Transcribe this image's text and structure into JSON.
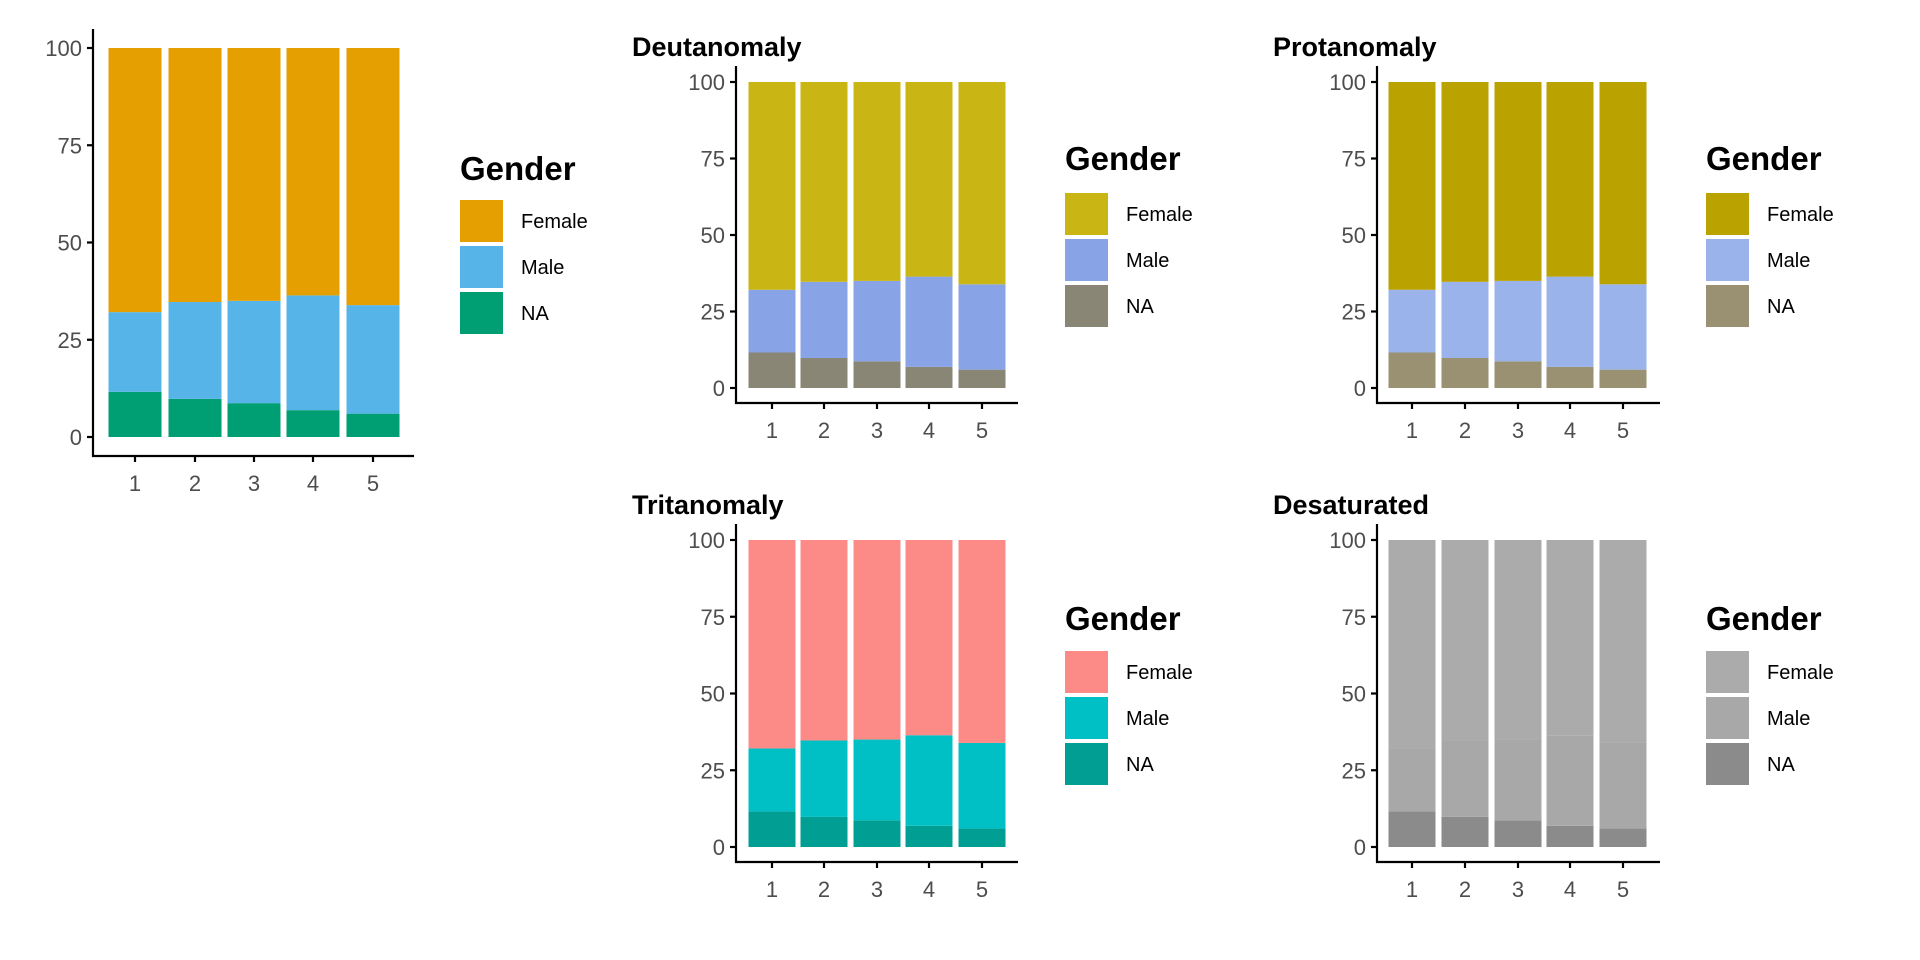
{
  "chart_data": [
    {
      "type": "bar",
      "stacked": true,
      "title": "",
      "xlabel": "",
      "ylabel": "",
      "categories": [
        "1",
        "2",
        "3",
        "4",
        "5"
      ],
      "yticks": [
        "0",
        "25",
        "50",
        "75",
        "100"
      ],
      "ylim": [
        0,
        100
      ],
      "grid": false,
      "legend": {
        "title": "Gender",
        "position": "right",
        "entries": [
          "Female",
          "Male",
          "NA"
        ]
      },
      "series": [
        {
          "name": "NA",
          "color": "#009E73",
          "values": [
            11.6,
            9.8,
            8.7,
            6.9,
            6.0
          ]
        },
        {
          "name": "Male",
          "color": "#56B4E9",
          "values": [
            20.5,
            24.9,
            26.3,
            29.5,
            27.9
          ]
        },
        {
          "name": "Female",
          "color": "#E69F00",
          "values": [
            67.9,
            65.3,
            65.0,
            63.6,
            66.1
          ]
        }
      ]
    },
    {
      "type": "bar",
      "stacked": true,
      "title": "Deutanomaly",
      "xlabel": "",
      "ylabel": "",
      "categories": [
        "1",
        "2",
        "3",
        "4",
        "5"
      ],
      "yticks": [
        "0",
        "25",
        "50",
        "75",
        "100"
      ],
      "ylim": [
        0,
        100
      ],
      "grid": false,
      "legend": {
        "title": "Gender",
        "position": "right",
        "entries": [
          "Female",
          "Male",
          "NA"
        ]
      },
      "series": [
        {
          "name": "NA",
          "color": "#8A8676",
          "values": [
            11.6,
            9.8,
            8.7,
            6.9,
            6.0
          ]
        },
        {
          "name": "Male",
          "color": "#88A4E6",
          "values": [
            20.5,
            24.9,
            26.3,
            29.5,
            27.9
          ]
        },
        {
          "name": "Female",
          "color": "#C9B513",
          "values": [
            67.9,
            65.3,
            65.0,
            63.6,
            66.1
          ]
        }
      ]
    },
    {
      "type": "bar",
      "stacked": true,
      "title": "Protanomaly",
      "xlabel": "",
      "ylabel": "",
      "categories": [
        "1",
        "2",
        "3",
        "4",
        "5"
      ],
      "yticks": [
        "0",
        "25",
        "50",
        "75",
        "100"
      ],
      "ylim": [
        0,
        100
      ],
      "grid": false,
      "legend": {
        "title": "Gender",
        "position": "right",
        "entries": [
          "Female",
          "Male",
          "NA"
        ]
      },
      "series": [
        {
          "name": "NA",
          "color": "#9A9072",
          "values": [
            11.6,
            9.8,
            8.7,
            6.9,
            6.0
          ]
        },
        {
          "name": "Male",
          "color": "#9AB3EA",
          "values": [
            20.5,
            24.9,
            26.3,
            29.5,
            27.9
          ]
        },
        {
          "name": "Female",
          "color": "#BAA200",
          "values": [
            67.9,
            65.3,
            65.0,
            63.6,
            66.1
          ]
        }
      ]
    },
    {
      "type": "bar",
      "stacked": true,
      "title": "Tritanomaly",
      "xlabel": "",
      "ylabel": "",
      "categories": [
        "1",
        "2",
        "3",
        "4",
        "5"
      ],
      "yticks": [
        "0",
        "25",
        "50",
        "75",
        "100"
      ],
      "ylim": [
        0,
        100
      ],
      "grid": false,
      "legend": {
        "title": "Gender",
        "position": "right",
        "entries": [
          "Female",
          "Male",
          "NA"
        ]
      },
      "series": [
        {
          "name": "NA",
          "color": "#009E93",
          "values": [
            11.6,
            9.8,
            8.7,
            6.9,
            6.0
          ]
        },
        {
          "name": "Male",
          "color": "#00C0C5",
          "values": [
            20.5,
            24.9,
            26.3,
            29.5,
            27.9
          ]
        },
        {
          "name": "Female",
          "color": "#FC8B88",
          "values": [
            67.9,
            65.3,
            65.0,
            63.6,
            66.1
          ]
        }
      ]
    },
    {
      "type": "bar",
      "stacked": true,
      "title": "Desaturated",
      "xlabel": "",
      "ylabel": "",
      "categories": [
        "1",
        "2",
        "3",
        "4",
        "5"
      ],
      "yticks": [
        "0",
        "25",
        "50",
        "75",
        "100"
      ],
      "ylim": [
        0,
        100
      ],
      "grid": false,
      "legend": {
        "title": "Gender",
        "position": "right",
        "entries": [
          "Female",
          "Male",
          "NA"
        ]
      },
      "series": [
        {
          "name": "NA",
          "color": "#8B8B8B",
          "values": [
            11.6,
            9.8,
            8.7,
            6.9,
            6.0
          ]
        },
        {
          "name": "Male",
          "color": "#A8A8A8",
          "values": [
            20.5,
            24.9,
            26.3,
            29.5,
            27.9
          ]
        },
        {
          "name": "Female",
          "color": "#ABABAB",
          "values": [
            67.9,
            65.3,
            65.0,
            63.6,
            66.1
          ]
        }
      ]
    }
  ]
}
